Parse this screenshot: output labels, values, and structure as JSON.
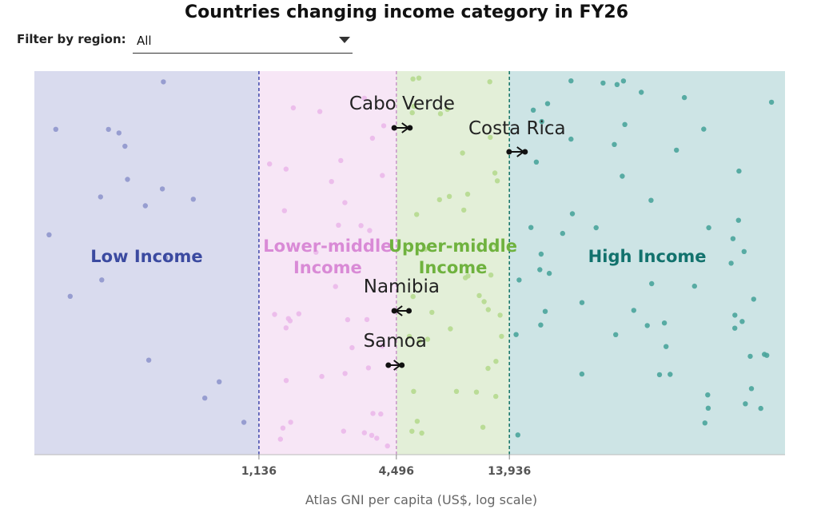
{
  "title": "Countries changing income category in FY26",
  "filter": {
    "label": "Filter by region:",
    "value": "All"
  },
  "colors": {
    "low_bg": "#d9dbee",
    "low_dot": "#8f96cc",
    "low_text": "#3b4aa0",
    "low_line": "#4a52b0",
    "lower_middle_bg": "#f7e6f6",
    "lower_middle_dot": "#eab8ea",
    "lower_middle_text": "#d98ad6",
    "lower_middle_line": "#cc99cc",
    "upper_middle_bg": "#e3efd8",
    "upper_middle_dot": "#b5d98f",
    "upper_middle_text": "#6fb23e",
    "upper_middle_line": "#8cbf6a",
    "high_bg": "#cde4e5",
    "high_dot": "#4aa49b",
    "high_text": "#12726d",
    "high_line": "#1d7a6e",
    "arrow": "#111111"
  },
  "chart_data": {
    "type": "scatter",
    "title": "Countries changing income category in FY26",
    "xlabel": "Atlas GNI per capita (US$, log scale)",
    "ylabel": "",
    "x_scale": "log",
    "xlim": [
      120,
      220000
    ],
    "thresholds": [
      {
        "value": 1136,
        "label": "1,136"
      },
      {
        "value": 4496,
        "label": "4,496"
      },
      {
        "value": 13936,
        "label": "13,936"
      }
    ],
    "bands": [
      {
        "name": "Low Income",
        "from": 120,
        "to": 1136
      },
      {
        "name": "Lower-middle Income",
        "from": 1136,
        "to": 4496
      },
      {
        "name": "Upper-middle Income",
        "from": 4496,
        "to": 13936
      },
      {
        "name": "High Income",
        "from": 13936,
        "to": 220000
      }
    ],
    "movers": [
      {
        "country": "Cabo Verde",
        "from_gni": 4400,
        "to_gni": 5150,
        "direction": "up"
      },
      {
        "country": "Costa Rica",
        "from_gni": 13900,
        "to_gni": 16300,
        "direction": "up"
      },
      {
        "country": "Namibia",
        "from_gni": 5100,
        "to_gni": 4400,
        "direction": "down"
      },
      {
        "country": "Samoa",
        "from_gni": 4150,
        "to_gni": 4750,
        "direction": "up"
      }
    ]
  }
}
